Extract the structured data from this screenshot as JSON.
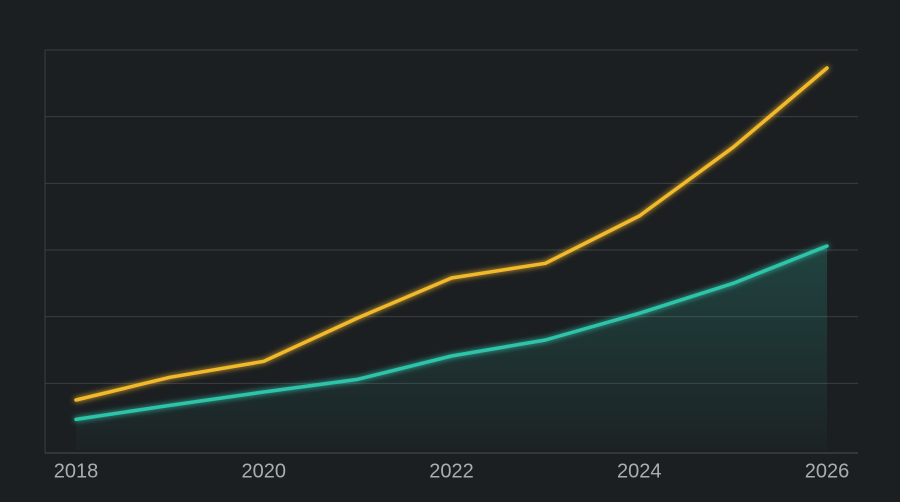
{
  "chart_data": {
    "type": "line",
    "x": [
      2018,
      2019,
      2020,
      2021,
      2022,
      2023,
      2024,
      2025,
      2026
    ],
    "series": [
      {
        "color": "#f2b92c",
        "values": [
          0.75,
          1.09,
          1.33,
          1.98,
          2.58,
          2.8,
          3.51,
          4.54,
          5.73
        ]
      },
      {
        "color": "#2ec4a9",
        "area": true,
        "values": [
          0.46,
          0.67,
          0.87,
          1.06,
          1.41,
          1.65,
          2.05,
          2.5,
          3.06
        ]
      }
    ],
    "xlim": [
      2017.67,
      2026.33
    ],
    "xticks": [
      2018,
      2020,
      2022,
      2024,
      2026
    ],
    "ylim": [
      0,
      6
    ],
    "yticks": [
      1,
      2,
      3,
      4,
      5,
      6
    ],
    "grid": true
  }
}
